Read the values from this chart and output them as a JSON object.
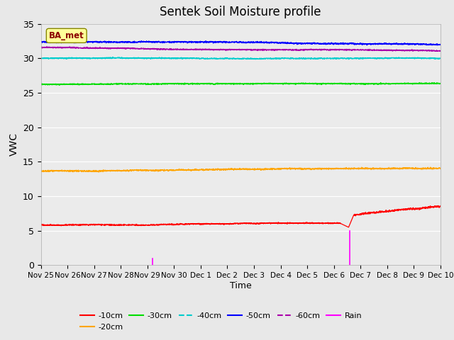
{
  "title": "Sentek Soil Moisture profile",
  "xlabel": "Time",
  "ylabel": "VWC",
  "legend_label": "BA_met",
  "ylim": [
    0,
    35
  ],
  "x_tick_labels": [
    "Nov 25",
    "Nov 26",
    "Nov 27",
    "Nov 28",
    "Nov 29",
    "Nov 30",
    "Dec 1",
    "Dec 2",
    "Dec 3",
    "Dec 4",
    "Dec 5",
    "Dec 6",
    "Dec 7",
    "Dec 8",
    "Dec 9",
    "Dec 10"
  ],
  "series": {
    "-10cm": {
      "color": "#ff0000",
      "base": 6.0
    },
    "-20cm": {
      "color": "#ffa500",
      "base": 13.7
    },
    "-30cm": {
      "color": "#00dd00",
      "base": 26.3
    },
    "-40cm": {
      "color": "#00cccc",
      "base": 30.0
    },
    "-50cm": {
      "color": "#0000ff",
      "base": 32.5
    },
    "-60cm": {
      "color": "#aa00aa",
      "base": 31.5
    }
  },
  "rain_events": [
    {
      "day": 4.2,
      "amount": 1.0
    },
    {
      "day": 11.6,
      "amount": 5.0
    },
    {
      "day": 7.5,
      "amount": 0.05
    }
  ],
  "rain_color": "#ff00ff",
  "background_color": "#e8e8e8",
  "plot_bg_color": "#ebebeb",
  "grid_color": "#ffffff"
}
